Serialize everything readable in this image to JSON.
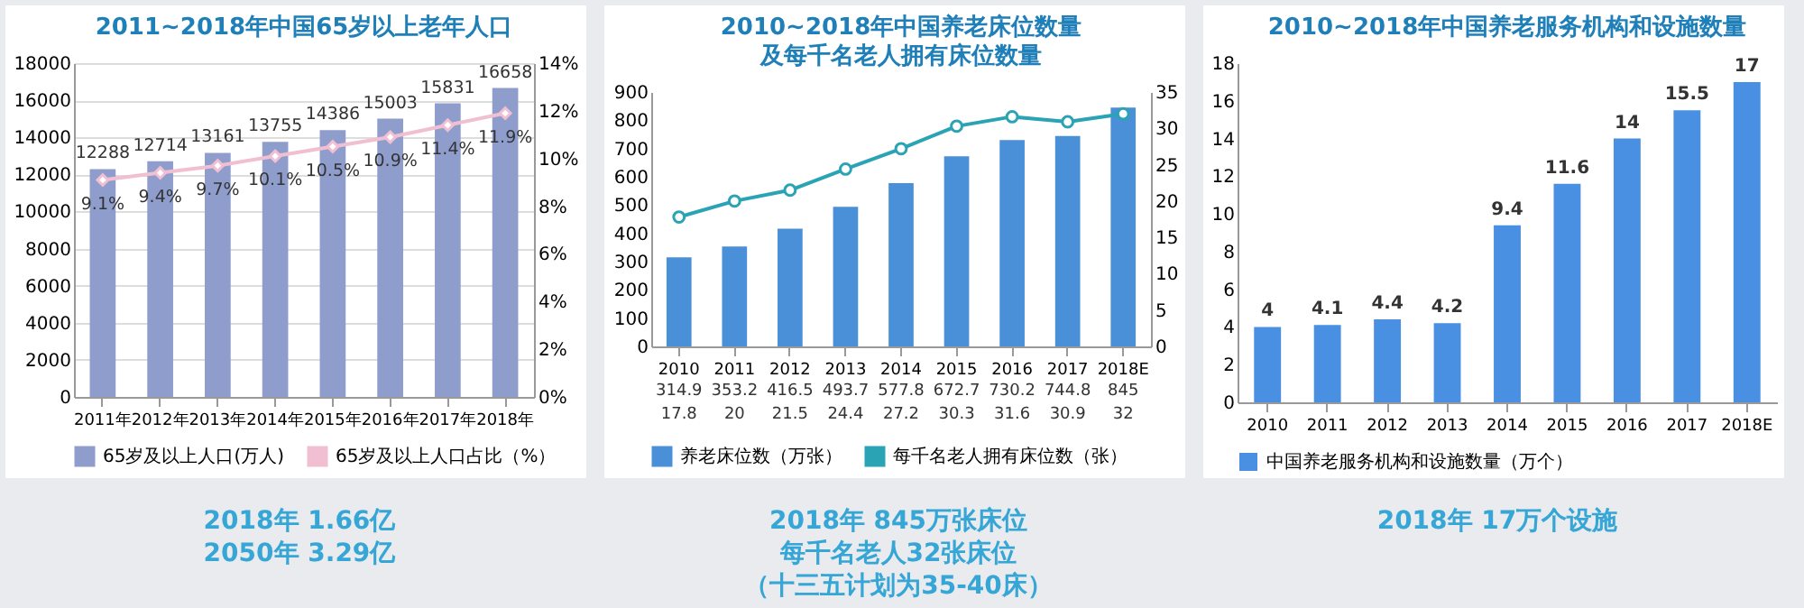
{
  "chart_data": [
    {
      "type": "bar",
      "title": "2011~2018年中国65岁以上老年人口",
      "categories": [
        "2011年",
        "2012年",
        "2013年",
        "2014年",
        "2015年",
        "2016年",
        "2017年",
        "2018年"
      ],
      "series": [
        {
          "name": "65岁及以上人口(万人)",
          "color": "#8f9dcc",
          "values": [
            12288,
            12714,
            13161,
            13755,
            14386,
            15003,
            15831,
            16658
          ],
          "value_labels": [
            "12288",
            "12714",
            "13161",
            "13755",
            "14386",
            "15003",
            "15831",
            "16658"
          ]
        },
        {
          "name": "65岁及以上人口占比（%）",
          "type": "line",
          "axis": "y2",
          "color": "#f0bfd2",
          "values": [
            9.1,
            9.4,
            9.7,
            10.1,
            10.5,
            10.9,
            11.4,
            11.9
          ],
          "value_labels": [
            "9.1%",
            "9.4%",
            "9.7%",
            "10.1%",
            "10.5%",
            "10.9%",
            "11.4%",
            "11.9%"
          ]
        }
      ],
      "ylim": [
        0,
        18000
      ],
      "yticks": [
        0,
        2000,
        4000,
        6000,
        8000,
        10000,
        12000,
        14000,
        16000,
        18000
      ],
      "y2lim": [
        0,
        14
      ],
      "y2ticks": [
        {
          "value": 0,
          "label": "0%"
        },
        {
          "value": 2,
          "label": "2%"
        },
        {
          "value": 4,
          "label": "4%"
        },
        {
          "value": 6,
          "label": "6%"
        },
        {
          "value": 8,
          "label": "8%"
        },
        {
          "value": 10,
          "label": "10%"
        },
        {
          "value": 12,
          "label": "12%"
        },
        {
          "value": 14,
          "label": "14%"
        }
      ],
      "grid": "y",
      "legend": "bottom",
      "marker": "diamond",
      "annotations": [
        "2018年 1.66亿",
        "2050年 3.29亿"
      ]
    },
    {
      "type": "bar",
      "title": "2010~2018年中国养老床位数量",
      "subtitle": "及每千名老人拥有床位数量",
      "categories": [
        "2010",
        "2011",
        "2012",
        "2013",
        "2014",
        "2015",
        "2016",
        "2017",
        "2018E"
      ],
      "series": [
        {
          "name": "养老床位数（万张）",
          "color": "#4a90d9",
          "values": [
            314.9,
            353.2,
            416.5,
            493.7,
            577.8,
            672.7,
            730.2,
            744.8,
            845
          ]
        },
        {
          "name": "每千名老人拥有床位数（张）",
          "type": "line",
          "axis": "y2",
          "color": "#2aa3b5",
          "values": [
            17.8,
            20.0,
            21.5,
            24.4,
            27.2,
            30.3,
            31.6,
            30.9,
            32
          ]
        }
      ],
      "ylim": [
        0,
        900
      ],
      "yticks": [
        0,
        100,
        200,
        300,
        400,
        500,
        600,
        700,
        800,
        900
      ],
      "y2lim": [
        0,
        35
      ],
      "y2ticks": [
        0,
        5,
        10,
        15,
        20,
        25,
        30,
        35
      ],
      "legend": "bottom",
      "marker": "circle",
      "data_labels": true,
      "annotations": [
        "2018年 845万张床位",
        "每千名老人32张床位",
        "（十三五计划为35-40床）"
      ]
    },
    {
      "type": "bar",
      "title": "2010~2018年中国养老服务机构和设施数量",
      "categories": [
        "2010",
        "2011",
        "2012",
        "2013",
        "2014",
        "2015",
        "2016",
        "2017",
        "2018E"
      ],
      "series": [
        {
          "name": "中国养老服务机构和设施数量（万个）",
          "color": "#4a90e2",
          "values": [
            4,
            4.1,
            4.4,
            4.2,
            9.4,
            11.6,
            14,
            15.5,
            17
          ]
        }
      ],
      "ylim": [
        0,
        18
      ],
      "yticks": [
        0,
        2,
        4,
        6,
        8,
        10,
        12,
        14,
        16,
        18
      ],
      "legend": "bottom",
      "data_labels": true,
      "annotations": [
        "2018年 17万个设施"
      ]
    }
  ]
}
